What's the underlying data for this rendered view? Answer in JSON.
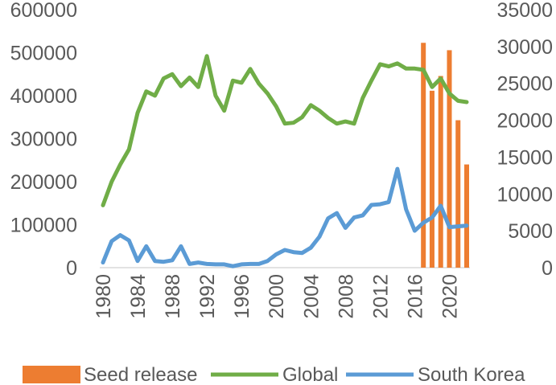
{
  "chart_data": {
    "type": "line",
    "title": "",
    "xlabel": "",
    "ylabel": "",
    "y2label": "",
    "x_tick_labels": [
      "1980",
      "1984",
      "1988",
      "1992",
      "1996",
      "2000",
      "2004",
      "2008",
      "2012",
      "2016",
      "2020"
    ],
    "y_ticks": [
      "0",
      "100000",
      "200000",
      "300000",
      "400000",
      "500000",
      "600000"
    ],
    "y2_ticks": [
      "0",
      "5000",
      "10000",
      "15000",
      "20000",
      "25000",
      "30000",
      "35000"
    ],
    "ylim": [
      0,
      600000
    ],
    "y2lim": [
      0,
      35000
    ],
    "xlim": [
      1980,
      2022
    ],
    "grid": false,
    "legend_position": "bottom",
    "series": [
      {
        "name": "Seed release",
        "type": "bar",
        "axis": "right",
        "color": "#ED7D31",
        "x": [
          2017,
          2018,
          2019,
          2020,
          2021,
          2022
        ],
        "values": [
          30500,
          24000,
          26000,
          29500,
          20000,
          14000
        ]
      },
      {
        "name": "Global",
        "type": "line",
        "axis": "left",
        "color": "#70AD47",
        "x": [
          1980,
          1981,
          1982,
          1983,
          1984,
          1985,
          1986,
          1987,
          1988,
          1989,
          1990,
          1991,
          1992,
          1993,
          1994,
          1995,
          1996,
          1997,
          1998,
          1999,
          2000,
          2001,
          2002,
          2003,
          2004,
          2005,
          2006,
          2007,
          2008,
          2009,
          2010,
          2011,
          2012,
          2013,
          2014,
          2015,
          2016,
          2017,
          2018,
          2019,
          2020,
          2021,
          2022
        ],
        "values": [
          145000,
          200000,
          240000,
          275000,
          360000,
          410000,
          400000,
          440000,
          450000,
          422000,
          442000,
          420000,
          492000,
          400000,
          365000,
          435000,
          430000,
          462000,
          428000,
          405000,
          375000,
          335000,
          337000,
          350000,
          378000,
          365000,
          348000,
          335000,
          340000,
          335000,
          395000,
          435000,
          473000,
          468000,
          475000,
          463000,
          463000,
          460000,
          420000,
          440000,
          405000,
          388000,
          385000
        ]
      },
      {
        "name": "South Korea",
        "type": "line",
        "axis": "right",
        "color": "#5B9BD5",
        "x": [
          1980,
          1981,
          1982,
          1983,
          1984,
          1985,
          1986,
          1987,
          1988,
          1989,
          1990,
          1991,
          1992,
          1993,
          1994,
          1995,
          1996,
          1997,
          1998,
          1999,
          2000,
          2001,
          2002,
          2003,
          2004,
          2005,
          2006,
          2007,
          2008,
          2009,
          2010,
          2011,
          2012,
          2013,
          2014,
          2015,
          2016,
          2017,
          2018,
          2019,
          2020,
          2021,
          2022
        ],
        "values": [
          700,
          3600,
          4400,
          3700,
          900,
          2900,
          900,
          800,
          1000,
          2900,
          500,
          700,
          500,
          450,
          450,
          200,
          450,
          500,
          500,
          900,
          1800,
          2400,
          2100,
          2000,
          2700,
          4200,
          6700,
          7400,
          5400,
          6800,
          7100,
          8500,
          8600,
          8900,
          13400,
          7900,
          5000,
          6100,
          6800,
          8400,
          5500,
          5600,
          5700
        ]
      }
    ]
  }
}
